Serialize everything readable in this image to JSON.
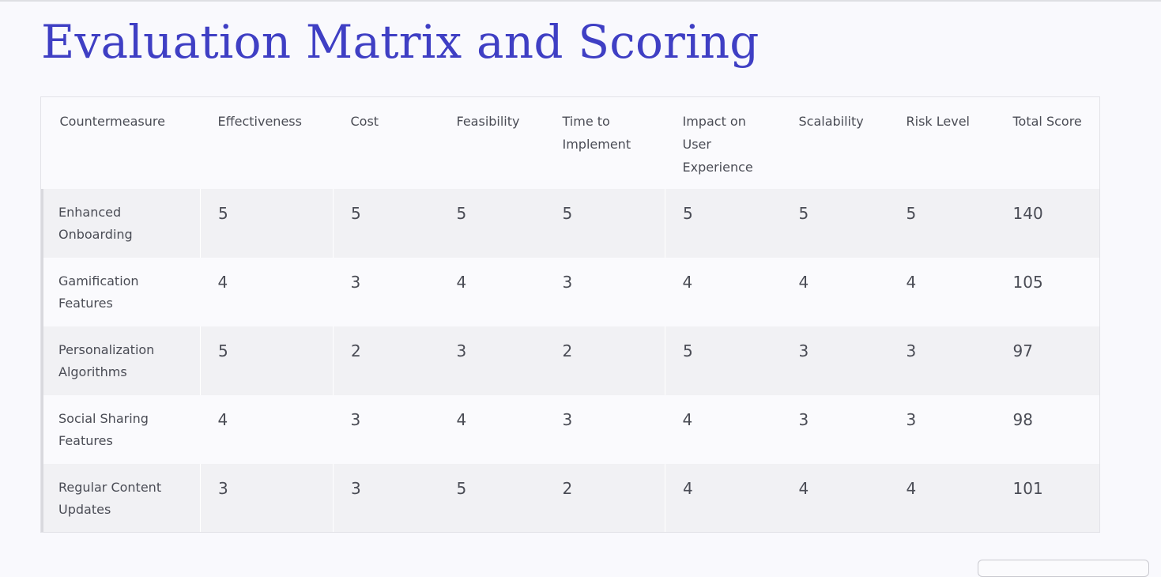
{
  "page": {
    "title": "Evaluation Matrix and Scoring"
  },
  "table": {
    "headers": [
      "Countermeasure",
      "Effectiveness",
      "Cost",
      "Feasibility",
      "Time to Implement",
      "Impact on User Experience",
      "Scalability",
      "Risk Level",
      "Total Score"
    ],
    "rows": [
      {
        "name": "Enhanced Onboarding",
        "values": [
          "5",
          "5",
          "5",
          "5",
          "5",
          "5",
          "5"
        ],
        "total": "140"
      },
      {
        "name": "Gamification Features",
        "values": [
          "4",
          "3",
          "4",
          "3",
          "4",
          "4",
          "4"
        ],
        "total": "105"
      },
      {
        "name": "Personalization Algorithms",
        "values": [
          "5",
          "2",
          "3",
          "2",
          "5",
          "3",
          "3"
        ],
        "total": "97"
      },
      {
        "name": "Social Sharing Features",
        "values": [
          "4",
          "3",
          "4",
          "3",
          "4",
          "3",
          "3"
        ],
        "total": "98"
      },
      {
        "name": "Regular Content Updates",
        "values": [
          "3",
          "3",
          "5",
          "2",
          "4",
          "4",
          "4"
        ],
        "total": "101"
      }
    ]
  }
}
